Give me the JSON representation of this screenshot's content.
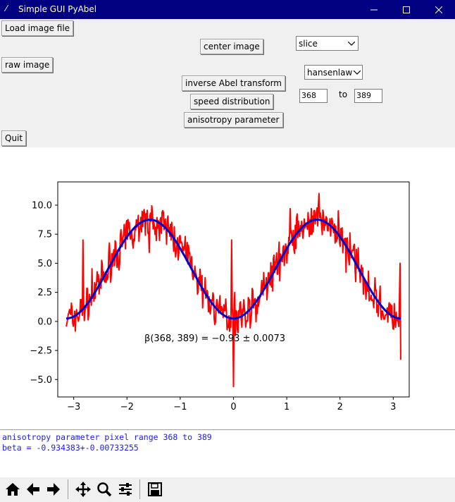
{
  "window": {
    "title": "Simple GUI PyAbel"
  },
  "buttons": {
    "load": "Load image file",
    "raw": "raw image",
    "quit": "Quit",
    "center": "center image",
    "inverse": "inverse Abel transform",
    "speed": "speed distribution",
    "aniso": "anisotropy parameter"
  },
  "selects": {
    "center_method": "slice",
    "transform_method": "hansenlaw"
  },
  "range": {
    "from": "368",
    "to_label": "to",
    "to": "389"
  },
  "console": {
    "line1": "anisotropy parameter pixel range 368 to 389",
    "line2": "beta = -0.934383+-0.00733255"
  },
  "colors": {
    "titlebar": "#000080",
    "data": "#ff0000",
    "fit": "#0000cc",
    "console_text": "#1a1aff"
  },
  "toolbar_icons": [
    "home-icon",
    "back-arrow-icon",
    "forward-arrow-icon",
    "pan-icon",
    "zoom-icon",
    "configure-icon",
    "save-icon"
  ],
  "chart_data": {
    "type": "line",
    "xlim": [
      -3.3,
      3.3
    ],
    "ylim": [
      -6.5,
      12
    ],
    "xticks": [
      -3,
      -2,
      -1,
      0,
      1,
      2,
      3
    ],
    "xtick_labels": [
      "−3",
      "−2",
      "−1",
      "0",
      "1",
      "2",
      "3"
    ],
    "yticks": [
      -5.0,
      -2.5,
      0.0,
      2.5,
      5.0,
      7.5,
      10.0
    ],
    "ytick_labels": [
      "−5.0",
      "−2.5",
      "0.0",
      "2.5",
      "5.0",
      "7.5",
      "10.0"
    ],
    "fit_params": {
      "amplitude": 4.25,
      "offset": 4.5,
      "x_start": -3.14,
      "x_end": 3.14
    },
    "annotation": {
      "text": "β(368, 389) = −0.93 ± 0.0073",
      "x": -0.35,
      "y": -1.7
    },
    "grid": false,
    "series": [
      {
        "style": "noisy-red",
        "description_values": "cos²-like data, range ≈ -5.6 to 11"
      },
      {
        "style": "smooth-blue"
      }
    ]
  }
}
